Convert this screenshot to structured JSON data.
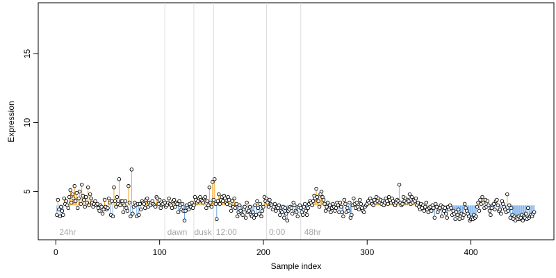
{
  "chart_data": {
    "type": "scatter",
    "title": "",
    "xlabel": "Sample index",
    "ylabel": "Expression",
    "xlim": [
      -17,
      480
    ],
    "ylim": [
      1.5,
      18.7
    ],
    "baseline": 4,
    "x_ticks": [
      0,
      100,
      200,
      300,
      400
    ],
    "y_ticks": [
      5,
      10,
      15
    ],
    "grid": false,
    "colors": {
      "above_baseline": "#f5a623",
      "below_baseline": "#6aa7e8",
      "point_fill": "#ffffff",
      "point_stroke": "#000000",
      "divider": "#dddddd",
      "annotation": "#a8a8a8"
    },
    "dividers": [
      105,
      133,
      152,
      203,
      236
    ],
    "annotations": [
      {
        "x": 2,
        "label": "24hr"
      },
      {
        "x": 106,
        "label": "dawn"
      },
      {
        "x": 132,
        "label": "dusk"
      },
      {
        "x": 153,
        "label": "12:00"
      },
      {
        "x": 204,
        "label": "0:00"
      },
      {
        "x": 238,
        "label": "48hr"
      }
    ],
    "points_x": [
      1,
      2,
      3,
      4,
      5,
      6,
      7,
      8,
      9,
      10,
      11,
      12,
      13,
      14,
      15,
      16,
      17,
      18,
      19,
      20,
      21,
      22,
      23,
      24,
      25,
      26,
      27,
      28,
      29,
      30,
      31,
      32,
      33,
      34,
      35,
      36,
      37,
      38,
      39,
      40,
      41,
      42,
      43,
      44,
      45,
      46,
      47,
      48,
      49,
      50,
      51,
      52,
      53,
      54,
      55,
      56,
      57,
      58,
      59,
      60,
      61,
      62,
      63,
      64,
      65,
      66,
      67,
      68,
      69,
      70,
      71,
      72,
      73,
      74,
      75,
      76,
      77,
      78,
      79,
      80,
      81,
      82,
      83,
      84,
      85,
      86,
      87,
      88,
      89,
      90,
      91,
      92,
      93,
      94,
      95,
      96,
      97,
      98,
      99,
      100,
      101,
      102,
      103,
      104,
      105,
      106,
      107,
      108,
      109,
      110,
      111,
      112,
      113,
      114,
      115,
      116,
      117,
      118,
      119,
      120,
      121,
      122,
      123,
      124,
      125,
      126,
      127,
      128,
      129,
      130,
      131,
      132,
      133,
      134,
      135,
      136,
      137,
      138,
      139,
      140,
      141,
      142,
      143,
      144,
      145,
      146,
      147,
      148,
      149,
      150,
      151,
      152,
      153,
      154,
      155,
      156,
      157,
      158,
      159,
      160,
      161,
      162,
      163,
      164,
      165,
      166,
      167,
      168,
      169,
      170,
      171,
      172,
      173,
      174,
      175,
      176,
      177,
      178,
      179,
      180,
      181,
      182,
      183,
      184,
      185,
      186,
      187,
      188,
      189,
      190,
      191,
      192,
      193,
      194,
      195,
      196,
      197,
      198,
      199,
      200,
      201,
      202,
      203,
      204,
      205,
      206,
      207,
      208,
      209,
      210,
      211,
      212,
      213,
      214,
      215,
      216,
      217,
      218,
      219,
      220,
      221,
      222,
      223,
      224,
      225,
      226,
      227,
      228,
      229,
      230,
      231,
      232,
      233,
      234,
      235,
      236,
      237,
      238,
      239,
      240,
      241,
      242,
      243,
      244,
      245,
      246,
      247,
      248,
      249,
      250,
      251,
      252,
      253,
      254,
      255,
      256,
      257,
      258,
      259,
      260,
      261,
      262,
      263,
      264,
      265,
      266,
      267,
      268,
      269,
      270,
      271,
      272,
      273,
      274,
      275,
      276,
      277,
      278,
      279,
      280,
      281,
      282,
      283,
      284,
      285,
      286,
      287,
      288,
      289,
      290,
      291,
      292,
      293,
      294,
      295,
      296,
      297,
      298,
      299,
      300,
      301,
      302,
      303,
      304,
      305,
      306,
      307,
      308,
      309,
      310,
      311,
      312,
      313,
      314,
      315,
      316,
      317,
      318,
      319,
      320,
      321,
      322,
      323,
      324,
      325,
      326,
      327,
      328,
      329,
      330,
      331,
      332,
      333,
      334,
      335,
      336,
      337,
      338,
      339,
      340,
      341,
      342,
      343,
      344,
      345,
      346,
      347,
      348,
      349,
      350,
      351,
      352,
      353,
      354,
      355,
      356,
      357,
      358,
      359,
      360,
      361,
      362,
      363,
      364,
      365,
      366,
      367,
      368,
      369,
      370,
      371,
      372,
      373,
      374,
      375,
      376,
      377,
      378,
      379,
      380,
      381,
      382,
      383,
      384,
      385,
      386,
      387,
      388,
      389,
      390,
      391,
      392,
      393,
      394,
      395,
      396,
      397,
      398,
      399,
      400,
      401,
      402,
      403,
      404,
      405,
      406,
      407,
      408,
      409,
      410,
      411,
      412,
      413,
      414,
      415,
      416,
      417,
      418,
      419,
      420,
      421,
      422,
      423,
      424,
      425,
      426,
      427,
      428,
      429,
      430,
      431,
      432,
      433,
      434,
      435,
      436,
      437,
      438,
      439,
      440,
      441,
      442,
      443,
      444,
      445,
      446,
      447,
      448,
      449,
      450,
      451,
      452,
      453,
      454,
      455,
      456,
      457,
      458,
      459,
      460,
      461
    ],
    "points_y": [
      3.3,
      4.4,
      3.7,
      3.2,
      3.9,
      3.6,
      3.3,
      4.5,
      4.1,
      4.3,
      4.0,
      3.8,
      4.6,
      5.1,
      4.2,
      4.8,
      4.5,
      5.4,
      4.3,
      4.9,
      3.8,
      4.5,
      5.0,
      4.1,
      5.5,
      4.7,
      4.4,
      3.9,
      4.6,
      4.2,
      5.3,
      4.0,
      4.8,
      4.5,
      4.2,
      3.9,
      4.1,
      4.3,
      4.0,
      4.1,
      3.8,
      3.6,
      4.0,
      3.9,
      3.4,
      3.7,
      4.4,
      3.9,
      3.7,
      3.8,
      4.5,
      4.2,
      3.3,
      4.3,
      3.2,
      5.3,
      4.3,
      3.9,
      4.6,
      4.1,
      5.9,
      4.0,
      4.3,
      4.3,
      3.5,
      4.0,
      4.3,
      3.8,
      3.6,
      5.4,
      4.2,
      3.2,
      6.6,
      3.4,
      3.9,
      4.2,
      4.0,
      3.2,
      4.1,
      3.3,
      4.1,
      3.7,
      4.3,
      4.2,
      4.1,
      3.8,
      4.4,
      4.5,
      3.9,
      4.2,
      4.0,
      4.2,
      4.3,
      4.1,
      4.0,
      3.9,
      4.6,
      4.5,
      4.1,
      4.4,
      3.8,
      4.0,
      4.1,
      4.3,
      4.2,
      3.9,
      4.0,
      4.2,
      4.5,
      4.1,
      4.0,
      3.8,
      4.3,
      4.4,
      3.9,
      4.2,
      4.1,
      3.5,
      4.3,
      4.0,
      3.7,
      4.1,
      3.6,
      2.9,
      3.6,
      4.0,
      3.8,
      3.7,
      4.1,
      3.9,
      4.2,
      3.8,
      4.0,
      4.6,
      4.4,
      4.2,
      4.3,
      4.5,
      4.6,
      4.4,
      4.3,
      4.2,
      4.5,
      4.6,
      3.8,
      4.3,
      4.0,
      5.3,
      4.2,
      3.9,
      5.7,
      4.4,
      5.9,
      4.1,
      3.0,
      4.3,
      4.8,
      4.1,
      4.4,
      4.6,
      4.3,
      4.7,
      4.5,
      4.2,
      4.1,
      4.6,
      4.4,
      4.0,
      3.6,
      4.3,
      3.9,
      4.5,
      3.8,
      4.1,
      3.2,
      3.5,
      4.0,
      3.6,
      3.4,
      3.3,
      3.7,
      3.9,
      3.1,
      4.2,
      3.5,
      3.6,
      3.9,
      3.3,
      3.2,
      3.5,
      3.1,
      4.0,
      3.3,
      4.3,
      3.8,
      3.4,
      4.1,
      3.2,
      3.6,
      3.9,
      4.6,
      4.3,
      4.5,
      4.2,
      3.9,
      4.4,
      4.1,
      4.0,
      3.7,
      3.9,
      4.1,
      3.6,
      3.9,
      3.8,
      4.0,
      3.3,
      3.6,
      3.5,
      3.9,
      3.1,
      3.8,
      3.4,
      2.9,
      3.6,
      3.7,
      3.9,
      3.8,
      3.4,
      4.2,
      4.0,
      3.6,
      3.5,
      3.2,
      3.9,
      4.0,
      3.8,
      3.5,
      3.3,
      3.9,
      4.1,
      3.6,
      3.3,
      3.8,
      4.1,
      4.3,
      4.2,
      4.0,
      4.3,
      4.7,
      4.5,
      5.2,
      4.6,
      4.3,
      3.9,
      4.8,
      5.0,
      4.6,
      4.4,
      4.1,
      3.6,
      3.9,
      4.2,
      3.7,
      4.0,
      3.5,
      3.8,
      4.1,
      3.9,
      3.6,
      3.8,
      4.2,
      4.0,
      3.5,
      4.2,
      3.9,
      3.5,
      3.2,
      4.4,
      4.1,
      3.5,
      3.8,
      3.6,
      4.2,
      3.1,
      3.3,
      4.0,
      4.5,
      4.1,
      3.8,
      4.2,
      3.9,
      3.7,
      4.4,
      4.1,
      3.8,
      3.6,
      3.5,
      3.9,
      4.0,
      4.1,
      4.3,
      4.2,
      4.5,
      4.3,
      4.1,
      4.0,
      4.4,
      4.2,
      4.6,
      4.3,
      4.5,
      4.2,
      4.4,
      4.1,
      4.3,
      4.0,
      4.2,
      4.5,
      4.3,
      4.1,
      4.6,
      4.4,
      4.2,
      4.5,
      4.3,
      4.1,
      4.0,
      4.2,
      4.4,
      4.3,
      5.5,
      4.2,
      4.0,
      4.1,
      4.6,
      4.3,
      4.5,
      4.2,
      4.4,
      4.3,
      4.8,
      4.1,
      4.6,
      4.2,
      4.4,
      4.3,
      4.5,
      4.0,
      4.2,
      3.9,
      3.7,
      4.1,
      3.8,
      4.0,
      3.6,
      3.9,
      4.2,
      3.7,
      3.5,
      3.8,
      3.9,
      3.6,
      4.0,
      3.8,
      3.1,
      4.1,
      3.9,
      3.5,
      3.7,
      3.8,
      4.0,
      3.2,
      3.9,
      3.6,
      3.8,
      3.4,
      3.1,
      3.9,
      3.7,
      4.0,
      3.8,
      3.3,
      3.6,
      3.4,
      3.0,
      3.5,
      3.3,
      3.7,
      3.0,
      3.2,
      3.4,
      3.1,
      3.3,
      4.1,
      3.8,
      3.6,
      3.4,
      3.2,
      2.9,
      3.0,
      3.1,
      3.0,
      3.3,
      3.1,
      3.2,
      3.9,
      4.2,
      3.6,
      4.4,
      4.1,
      4.6,
      4.2,
      3.8,
      4.4,
      3.9,
      4.3,
      4.0,
      3.6,
      3.3,
      3.8,
      4.0,
      4.1,
      3.7,
      4.3,
      4.4,
      4.0,
      3.6,
      3.7,
      3.4,
      4.3,
      4.1,
      3.9,
      3.7,
      3.5,
      4.8,
      3.6,
      4.0,
      3.1,
      3.8,
      3.3,
      3.0,
      3.2,
      2.9,
      3.1,
      3.0,
      3.2,
      3.0,
      3.1,
      3.3,
      2.9,
      3.2,
      3.1,
      3.4,
      3.0,
      3.8,
      3.1,
      3.2,
      3.3,
      3.2,
      3.4,
      3.5
    ]
  }
}
